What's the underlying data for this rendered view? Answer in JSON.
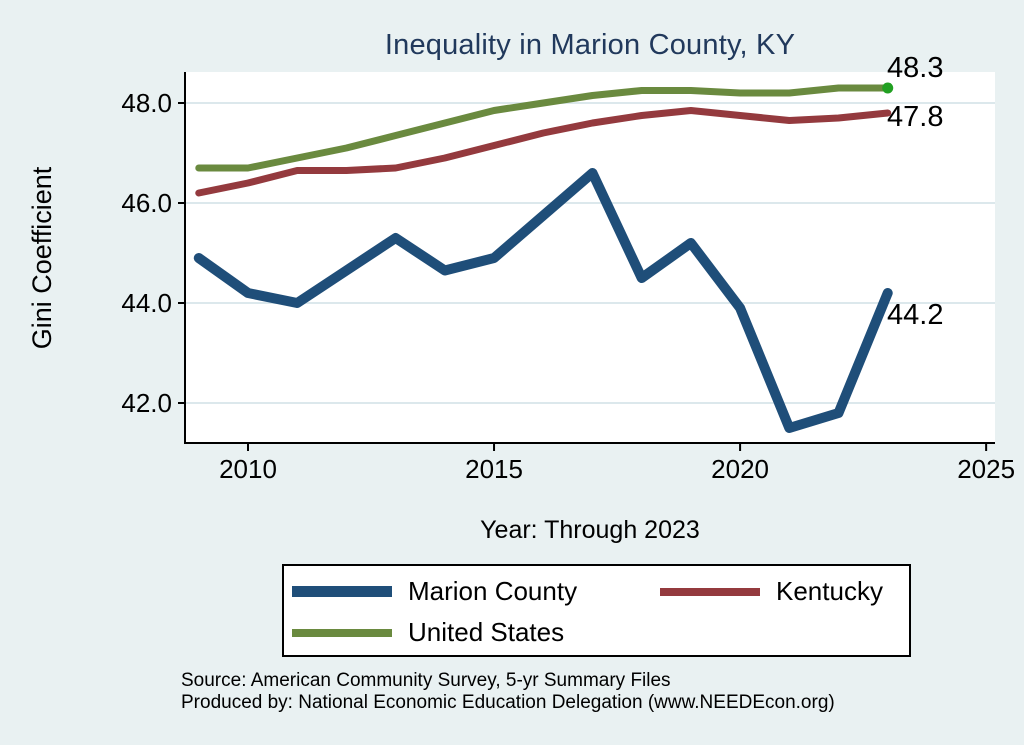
{
  "colors": {
    "background": "#e9f1f2",
    "plot_bg": "#ffffff",
    "grid": "#dce8ec",
    "axis": "#000000",
    "title_text": "#21395c",
    "marion": "#1f4e79",
    "kentucky": "#943a3e",
    "us": "#6a8a3f",
    "end_dot": "#22a022"
  },
  "chart_data": {
    "type": "line",
    "title": "Inequality in Marion County, KY",
    "xlabel": "Year: Through 2023",
    "ylabel": "Gini Coefficient",
    "x": [
      2009,
      2010,
      2011,
      2012,
      2013,
      2014,
      2015,
      2016,
      2017,
      2018,
      2019,
      2020,
      2021,
      2022,
      2023
    ],
    "series": [
      {
        "name": "Marion County",
        "color_key": "marion",
        "stroke_width": 10,
        "values": [
          44.9,
          44.2,
          44.0,
          44.65,
          45.3,
          44.65,
          44.9,
          45.75,
          46.6,
          44.5,
          45.2,
          43.9,
          41.5,
          41.8,
          44.2
        ],
        "end_label": "44.2",
        "end_marker": false
      },
      {
        "name": "Kentucky",
        "color_key": "kentucky",
        "stroke_width": 7,
        "values": [
          46.2,
          46.4,
          46.65,
          46.65,
          46.7,
          46.9,
          47.15,
          47.4,
          47.6,
          47.75,
          47.85,
          47.75,
          47.65,
          47.7,
          47.8
        ],
        "end_label": "47.8",
        "end_marker": false
      },
      {
        "name": "United States",
        "color_key": "us",
        "stroke_width": 7,
        "values": [
          46.7,
          46.7,
          46.9,
          47.1,
          47.35,
          47.6,
          47.85,
          48.0,
          48.15,
          48.25,
          48.25,
          48.2,
          48.2,
          48.3,
          48.3
        ],
        "end_label": "48.3",
        "end_marker": true
      }
    ],
    "xlim": [
      2008.72,
      2025.18
    ],
    "ylim": [
      41.2,
      48.62
    ],
    "x_ticks": {
      "values": [
        2010,
        2015,
        2020,
        2025
      ],
      "labels": [
        "2010",
        "2015",
        "2020",
        "2025"
      ]
    },
    "y_ticks": {
      "values": [
        48,
        46,
        44,
        42
      ],
      "labels": [
        "48.0",
        "46.0",
        "44.0",
        "42.0"
      ]
    },
    "grid": "horizontal-only",
    "legend_position": "bottom-boxed"
  },
  "footer": {
    "source_line": "Source: American Community Survey, 5-yr Summary Files",
    "produced_line": "Produced by: National Economic Education Delegation (www.NEEDEcon.org)"
  }
}
